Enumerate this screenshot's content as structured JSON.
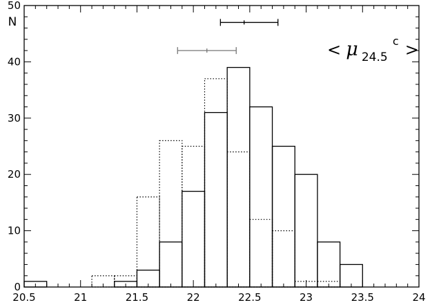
{
  "chart_data": {
    "type": "bar",
    "subtype": "overlaid step histogram",
    "ylabel": "N",
    "xlabel": "",
    "title": "",
    "xlim": [
      20.5,
      24
    ],
    "ylim": [
      0,
      50
    ],
    "x_ticks": [
      "20.5",
      "21",
      "21.5",
      "22",
      "22.5",
      "23",
      "23.5",
      "24"
    ],
    "x_tick_values": [
      20.5,
      21,
      21.5,
      22,
      22.5,
      23,
      23.5,
      24
    ],
    "y_ticks": [
      "0",
      "10",
      "20",
      "30",
      "40",
      "50"
    ],
    "y_tick_values": [
      0,
      10,
      20,
      30,
      40,
      50
    ],
    "grid": false,
    "legend": "none",
    "bin_width": 0.2,
    "series": [
      {
        "style": "solid",
        "color": "#000000",
        "bins": [
          {
            "x0": 20.5,
            "x1": 20.7,
            "count": 1
          },
          {
            "x0": 21.3,
            "x1": 21.5,
            "count": 1
          },
          {
            "x0": 21.5,
            "x1": 21.7,
            "count": 3
          },
          {
            "x0": 21.7,
            "x1": 21.9,
            "count": 8
          },
          {
            "x0": 21.9,
            "x1": 22.1,
            "count": 17
          },
          {
            "x0": 22.1,
            "x1": 22.3,
            "count": 31
          },
          {
            "x0": 22.3,
            "x1": 22.5,
            "count": 39
          },
          {
            "x0": 22.5,
            "x1": 22.7,
            "count": 32
          },
          {
            "x0": 22.7,
            "x1": 22.9,
            "count": 25
          },
          {
            "x0": 22.9,
            "x1": 23.1,
            "count": 20
          },
          {
            "x0": 23.1,
            "x1": 23.3,
            "count": 8
          },
          {
            "x0": 23.3,
            "x1": 23.5,
            "count": 4
          }
        ]
      },
      {
        "style": "dotted",
        "color": "#000000",
        "bins": [
          {
            "x0": 21.1,
            "x1": 21.3,
            "count": 2
          },
          {
            "x0": 21.3,
            "x1": 21.5,
            "count": 2
          },
          {
            "x0": 21.5,
            "x1": 21.7,
            "count": 16
          },
          {
            "x0": 21.7,
            "x1": 21.9,
            "count": 26
          },
          {
            "x0": 21.9,
            "x1": 22.1,
            "count": 25
          },
          {
            "x0": 22.1,
            "x1": 22.3,
            "count": 37
          },
          {
            "x0": 22.3,
            "x1": 22.5,
            "count": 24
          },
          {
            "x0": 22.5,
            "x1": 22.7,
            "count": 12
          },
          {
            "x0": 22.7,
            "x1": 22.9,
            "count": 10
          },
          {
            "x0": 22.9,
            "x1": 23.1,
            "count": 1
          },
          {
            "x0": 23.1,
            "x1": 23.3,
            "count": 1
          }
        ]
      }
    ],
    "error_bars": [
      {
        "color": "#000000",
        "center": 22.45,
        "low": 22.24,
        "high": 22.75,
        "y": 47
      },
      {
        "color": "#777777",
        "center": 22.12,
        "low": 21.86,
        "high": 22.38,
        "y": 42
      }
    ],
    "annotation": {
      "open": "<",
      "base": "μ",
      "subscript": "24.5",
      "superscript": "c",
      "close": ">"
    }
  }
}
